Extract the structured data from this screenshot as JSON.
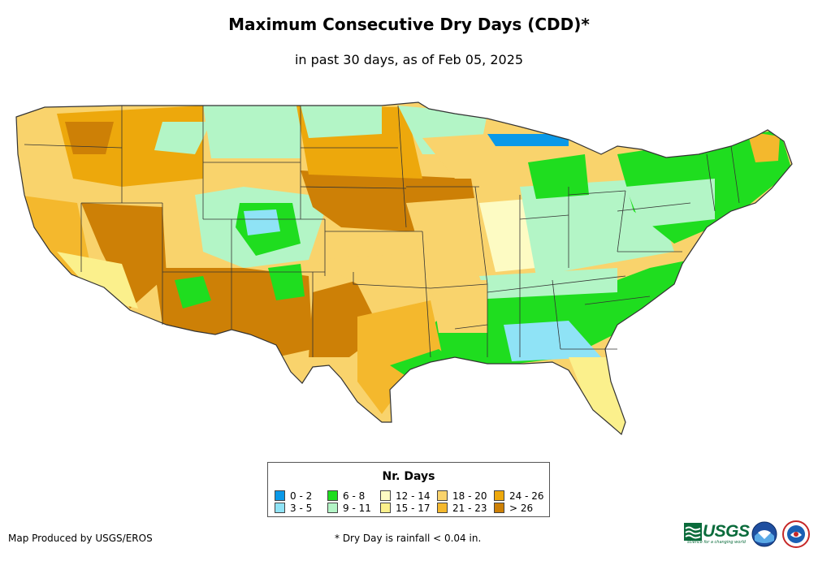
{
  "header": {
    "title": "Maximum Consecutive Dry Days (CDD)*",
    "subtitle": "in past 30 days, as of Feb 05, 2025"
  },
  "legend": {
    "title": "Nr. Days",
    "items": [
      {
        "label": "0 - 2",
        "color": "#0a99e8"
      },
      {
        "label": "3 - 5",
        "color": "#8fe3f6"
      },
      {
        "label": "6 - 8",
        "color": "#1fdd1f"
      },
      {
        "label": "9 - 11",
        "color": "#b3f5c6"
      },
      {
        "label": "12 - 14",
        "color": "#fdfbc3"
      },
      {
        "label": "15 - 17",
        "color": "#fbf08c"
      },
      {
        "label": "18 - 20",
        "color": "#f9d36c"
      },
      {
        "label": "21 - 23",
        "color": "#f4b82d"
      },
      {
        "label": "24 - 26",
        "color": "#eda80c"
      },
      {
        "label": "> 26",
        "color": "#cd8006"
      }
    ]
  },
  "footer": {
    "credit": "Map Produced by USGS/EROS",
    "note": "* Dry Day is rainfall < 0.04 in."
  },
  "logos": {
    "usgs_text": "USGS",
    "usgs_tagline": "science for a changing world",
    "icons": [
      "usgs-logo-icon",
      "noaa-logo-icon",
      "nws-logo-icon"
    ]
  }
}
